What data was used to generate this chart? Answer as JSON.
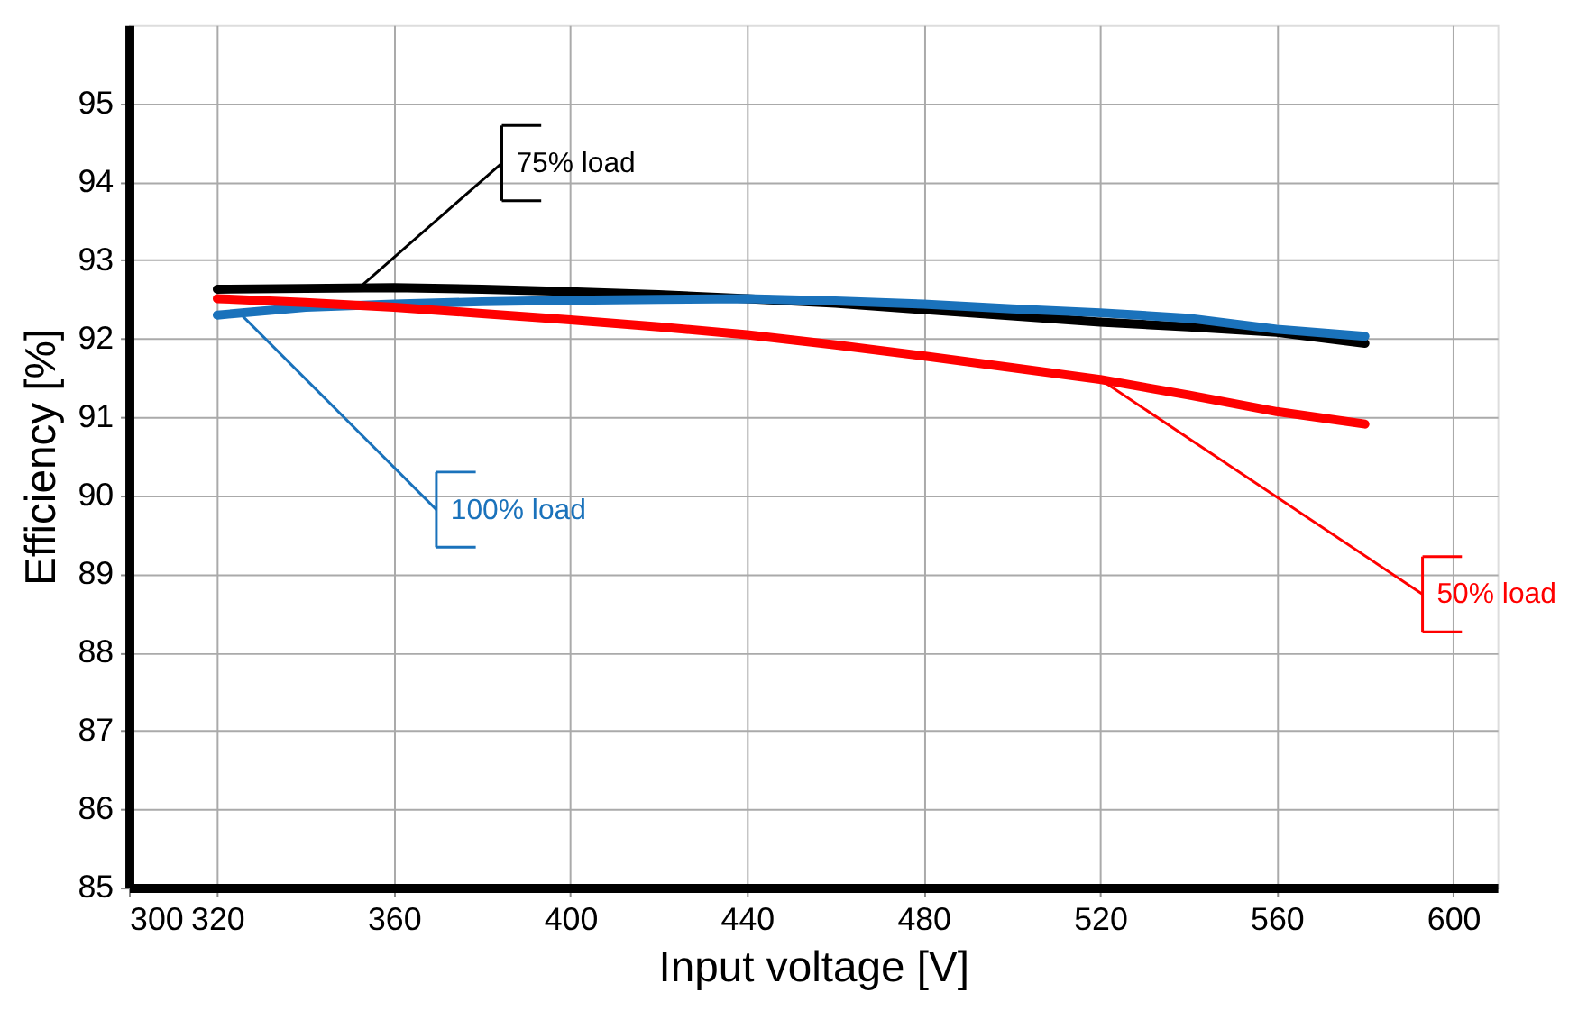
{
  "chart_data": {
    "type": "line",
    "xlabel": "Input voltage [V]",
    "ylabel": "Efficiency [%]",
    "x": [
      320,
      340,
      360,
      380,
      400,
      420,
      440,
      460,
      480,
      500,
      520,
      540,
      560,
      580
    ],
    "xlim": [
      300,
      610
    ],
    "ylim": [
      85,
      96
    ],
    "xticks": [
      300,
      320,
      360,
      400,
      440,
      480,
      520,
      560,
      600
    ],
    "yticks": [
      85,
      86,
      87,
      88,
      89,
      90,
      91,
      92,
      93,
      94,
      95
    ],
    "grid": true,
    "legend": false,
    "line_style": "solid",
    "marker": "none",
    "series": [
      {
        "color": "#000000",
        "values": [
          92.63,
          92.64,
          92.65,
          92.63,
          92.6,
          92.56,
          92.51,
          92.45,
          92.37,
          92.29,
          92.21,
          92.15,
          92.08,
          91.94
        ]
      },
      {
        "color": "#1a72bb",
        "values": [
          92.3,
          92.4,
          92.44,
          92.47,
          92.49,
          92.5,
          92.51,
          92.48,
          92.44,
          92.38,
          92.33,
          92.26,
          92.12,
          92.03
        ]
      },
      {
        "color": "#ff0000",
        "values": [
          92.51,
          92.46,
          92.4,
          92.32,
          92.24,
          92.15,
          92.05,
          91.92,
          91.78,
          91.63,
          91.48,
          91.28,
          91.07,
          90.91
        ]
      }
    ],
    "annotations": [
      {
        "text": "75% load",
        "x": 352,
        "y": 92.64
      },
      {
        "text": "100% load",
        "x": 325,
        "y": 92.33
      },
      {
        "text": "50% load",
        "x": 520,
        "y": 91.48
      }
    ]
  }
}
